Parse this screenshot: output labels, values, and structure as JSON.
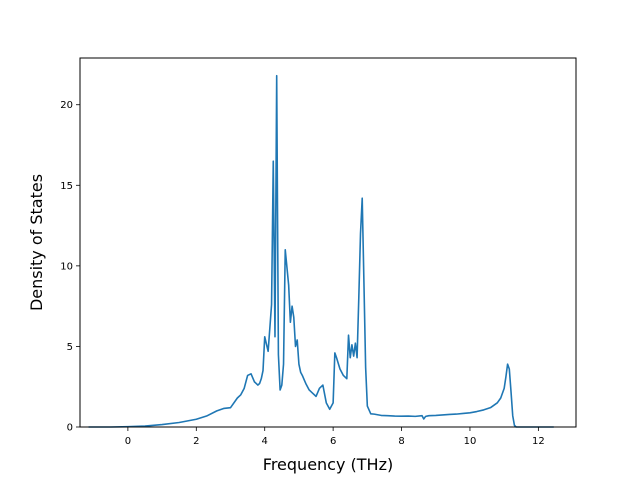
{
  "chart_data": {
    "type": "line",
    "title": "",
    "xlabel": "Frequency (THz)",
    "ylabel": "Density of States",
    "xlim": [
      -1.4,
      13.1
    ],
    "ylim": [
      0,
      22.9
    ],
    "xticks": [
      0,
      2,
      4,
      6,
      8,
      10,
      12
    ],
    "yticks": [
      0,
      5,
      10,
      15,
      20
    ],
    "grid": false,
    "legend": "none",
    "line_color": "#1f77b4",
    "series": [
      {
        "x": [
          -1.15,
          -0.5,
          0.0,
          0.5,
          1.0,
          1.5,
          2.0,
          2.3,
          2.6,
          2.8,
          3.0,
          3.2,
          3.3,
          3.4,
          3.5,
          3.6,
          3.7,
          3.8,
          3.85,
          3.9,
          3.95,
          4.0,
          4.1,
          4.2,
          4.25,
          4.3,
          4.35,
          4.4,
          4.45,
          4.5,
          4.55,
          4.6,
          4.7,
          4.75,
          4.8,
          4.85,
          4.9,
          4.95,
          5.0,
          5.05,
          5.1,
          5.2,
          5.3,
          5.4,
          5.5,
          5.6,
          5.7,
          5.8,
          5.9,
          6.0,
          6.05,
          6.1,
          6.2,
          6.3,
          6.4,
          6.45,
          6.5,
          6.55,
          6.6,
          6.65,
          6.7,
          6.75,
          6.8,
          6.85,
          6.9,
          6.95,
          7.0,
          7.1,
          7.2,
          7.4,
          7.6,
          7.8,
          8.0,
          8.2,
          8.4,
          8.6,
          8.65,
          8.7,
          8.75,
          8.8,
          9.0,
          9.2,
          9.4,
          9.6,
          9.8,
          10.0,
          10.2,
          10.4,
          10.6,
          10.8,
          10.9,
          11.0,
          11.05,
          11.1,
          11.15,
          11.2,
          11.25,
          11.3,
          11.35,
          11.5,
          12.0,
          12.45
        ],
        "values": [
          0.0,
          0.0,
          0.02,
          0.06,
          0.15,
          0.28,
          0.48,
          0.68,
          1.0,
          1.15,
          1.2,
          1.8,
          2.0,
          2.4,
          3.2,
          3.3,
          2.8,
          2.6,
          2.7,
          3.0,
          3.5,
          5.6,
          4.7,
          7.6,
          16.5,
          5.6,
          21.8,
          4.5,
          2.3,
          2.6,
          3.9,
          11.0,
          8.8,
          6.5,
          7.5,
          6.8,
          5.0,
          5.4,
          3.9,
          3.4,
          3.2,
          2.7,
          2.3,
          2.1,
          1.9,
          2.4,
          2.6,
          1.5,
          1.1,
          1.5,
          4.6,
          4.3,
          3.6,
          3.2,
          3.0,
          5.7,
          4.3,
          5.1,
          4.4,
          5.2,
          4.3,
          8.0,
          12.0,
          14.2,
          9.0,
          3.7,
          1.3,
          0.82,
          0.8,
          0.72,
          0.7,
          0.68,
          0.67,
          0.68,
          0.66,
          0.7,
          0.5,
          0.65,
          0.68,
          0.7,
          0.72,
          0.75,
          0.78,
          0.8,
          0.84,
          0.88,
          0.96,
          1.06,
          1.2,
          1.5,
          1.8,
          2.4,
          3.1,
          3.9,
          3.6,
          2.2,
          0.7,
          0.1,
          0.0,
          0.0,
          0.0,
          0.0
        ]
      }
    ]
  }
}
